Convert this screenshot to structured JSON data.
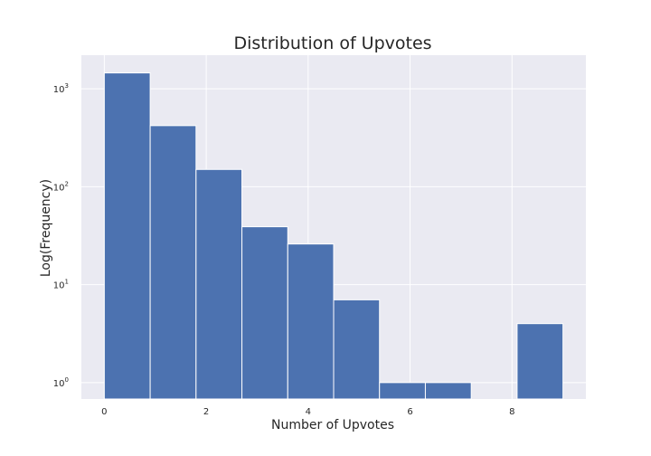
{
  "chart_data": {
    "type": "bar",
    "title": "Distribution of Upvotes",
    "xlabel": "Number of Upvotes",
    "ylabel": "Log(Frequency)",
    "xlim": [
      -0.45,
      9.45
    ],
    "ylim": [
      0.68,
      2200
    ],
    "yscale": "log",
    "grid": true,
    "legend": "none",
    "bar_color": "#4c72b0",
    "background_color": "#eaeaf2",
    "grid_color": "#ffffff",
    "x_ticks": [
      {
        "value": 0,
        "label": "0"
      },
      {
        "value": 2,
        "label": "2"
      },
      {
        "value": 4,
        "label": "4"
      },
      {
        "value": 6,
        "label": "6"
      },
      {
        "value": 8,
        "label": "8"
      }
    ],
    "y_ticks": [
      {
        "value": 1,
        "base": "10",
        "exp": "0"
      },
      {
        "value": 10,
        "base": "10",
        "exp": "1"
      },
      {
        "value": 100,
        "base": "10",
        "exp": "2"
      },
      {
        "value": 1000,
        "base": "10",
        "exp": "3"
      }
    ],
    "bins": [
      {
        "start": 0.0,
        "end": 0.9,
        "count": 1450
      },
      {
        "start": 0.9,
        "end": 1.8,
        "count": 420
      },
      {
        "start": 1.8,
        "end": 2.7,
        "count": 150
      },
      {
        "start": 2.7,
        "end": 3.6,
        "count": 39
      },
      {
        "start": 3.6,
        "end": 4.5,
        "count": 26
      },
      {
        "start": 4.5,
        "end": 5.4,
        "count": 7
      },
      {
        "start": 5.4,
        "end": 6.3,
        "count": 1
      },
      {
        "start": 6.3,
        "end": 7.2,
        "count": 1
      },
      {
        "start": 7.2,
        "end": 8.1,
        "count": 0
      },
      {
        "start": 8.1,
        "end": 9.0,
        "count": 4
      }
    ]
  }
}
